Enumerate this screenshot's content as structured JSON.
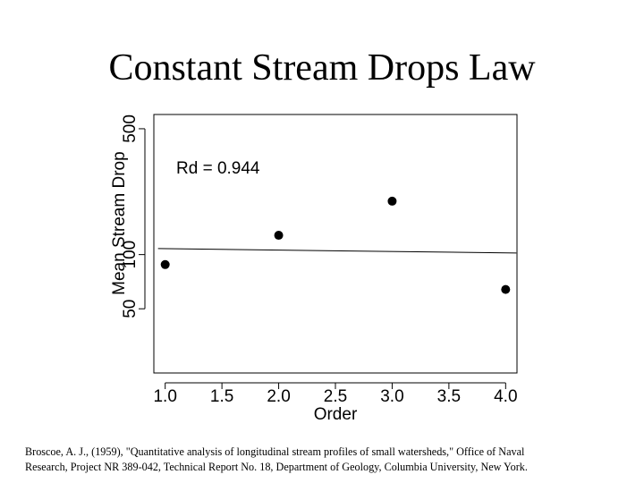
{
  "slide": {
    "title": "Constant Stream Drops Law",
    "citation_line1": "Broscoe, A. J., (1959), \"Quantitative analysis of longitudinal stream profiles of small watersheds,\" Office of Naval",
    "citation_line2": "Research, Project NR 389-042, Technical Report No. 18, Department of Geology, Columbia University, New York."
  },
  "chart_data": {
    "type": "scatter",
    "xlabel": "Order",
    "ylabel": "Mean Stream Drop",
    "annotation": "Rd = 0.944",
    "y_scale": "log",
    "xlim": [
      0.9,
      4.1
    ],
    "ylim": [
      22,
      600
    ],
    "x_ticks": [
      "1.0",
      "1.5",
      "2.0",
      "2.5",
      "3.0",
      "3.5",
      "4.0"
    ],
    "y_ticks": [
      "50",
      "100",
      "500"
    ],
    "points": {
      "x": [
        1,
        2,
        3,
        4
      ],
      "y": [
        88,
        128,
        198,
        64
      ]
    },
    "fit_line": {
      "x": [
        1,
        4
      ],
      "y": [
        108,
        102
      ]
    },
    "grid": false
  }
}
